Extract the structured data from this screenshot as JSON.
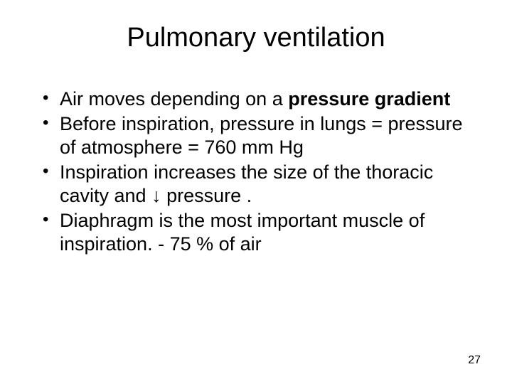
{
  "slide": {
    "title": "Pulmonary ventilation",
    "bullets": [
      {
        "pre": "Air moves depending on a ",
        "bold": "pressure gradient",
        "post": ""
      },
      {
        "pre": "Before inspiration, pressure in lungs = pressure of atmosphere = 760 mm Hg",
        "bold": "",
        "post": ""
      },
      {
        "pre": "Inspiration increases the size of the thoracic cavity and ↓  pressure .",
        "bold": "",
        "post": ""
      },
      {
        "pre": "Diaphragm is the most important muscle of inspiration. - 75 % of air",
        "bold": "",
        "post": ""
      }
    ],
    "page_number": "27",
    "style": {
      "background_color": "#ffffff",
      "text_color": "#000000",
      "title_fontsize": 38,
      "body_fontsize": 27,
      "pageno_fontsize": 16,
      "font_family": "Arial"
    }
  }
}
